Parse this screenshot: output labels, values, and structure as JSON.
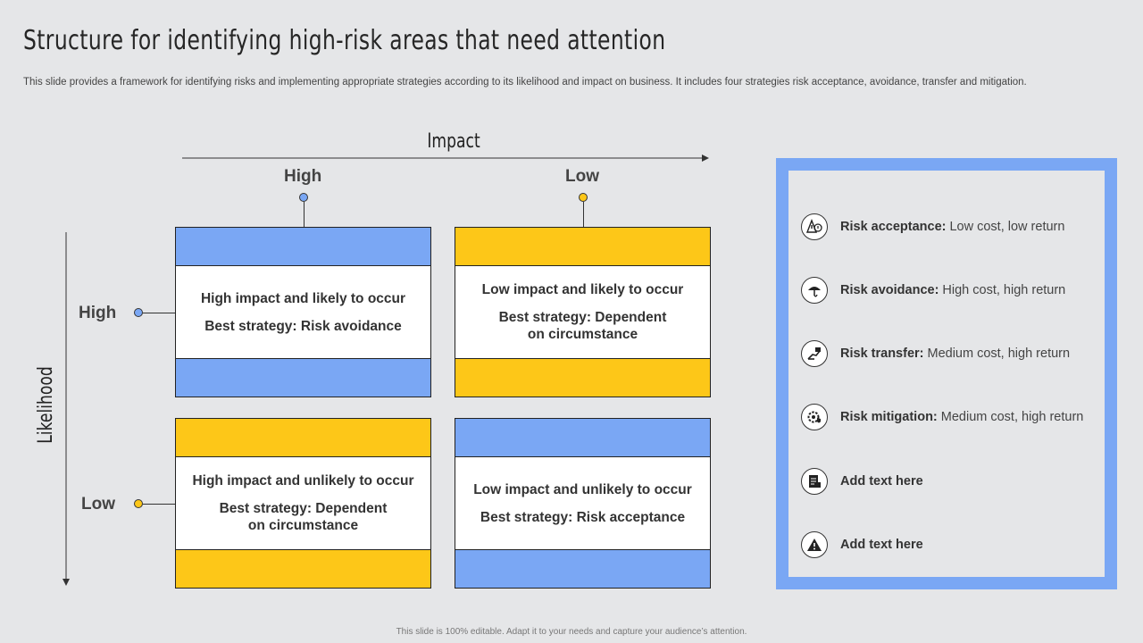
{
  "title": "Structure for identifying high-risk areas that need attention",
  "subtitle": "This slide provides a framework for identifying risks and implementing appropriate strategies according to its likelihood and impact on business. It includes four strategies risk acceptance, avoidance, transfer and mitigation.",
  "axes": {
    "x_title": "Impact",
    "y_title": "Likelihood",
    "x_high": "High",
    "x_low": "Low",
    "y_high": "High",
    "y_low": "Low"
  },
  "matrix": [
    {
      "heading": "High impact and likely to occur",
      "strategy": "Best strategy: Risk avoidance",
      "color": "#7aa7f4"
    },
    {
      "heading": "Low impact and likely to occur",
      "strategy": "Best strategy: Dependent on circumstance",
      "color": "#fdc718"
    },
    {
      "heading": "High impact and unlikely to occur",
      "strategy": "Best strategy: Dependent on circumstance",
      "color": "#fdc718"
    },
    {
      "heading": "Low impact and unlikely to occur",
      "strategy": "Best strategy: Risk acceptance",
      "color": "#7aa7f4"
    }
  ],
  "legend": [
    {
      "label": "Risk acceptance:",
      "text": "Low cost, low return",
      "icon": "warning-sign-icon"
    },
    {
      "label": "Risk avoidance:",
      "text": "High cost, high return",
      "icon": "umbrella-icon"
    },
    {
      "label": "Risk transfer:",
      "text": "Medium cost, high return",
      "icon": "hand-transfer-icon"
    },
    {
      "label": "Risk mitigation:",
      "text": "Medium cost, high return",
      "icon": "gear-shield-icon"
    },
    {
      "label": "Add  text here",
      "text": "",
      "icon": "document-icon"
    },
    {
      "label": "Add  text here",
      "text": "",
      "icon": "alert-triangle-icon"
    }
  ],
  "colors": {
    "blue": "#7aa7f4",
    "yellow": "#fdc718",
    "background": "#e5e6e8"
  },
  "footer": "This slide is 100% editable. Adapt it to your needs and capture your audience’s attention."
}
